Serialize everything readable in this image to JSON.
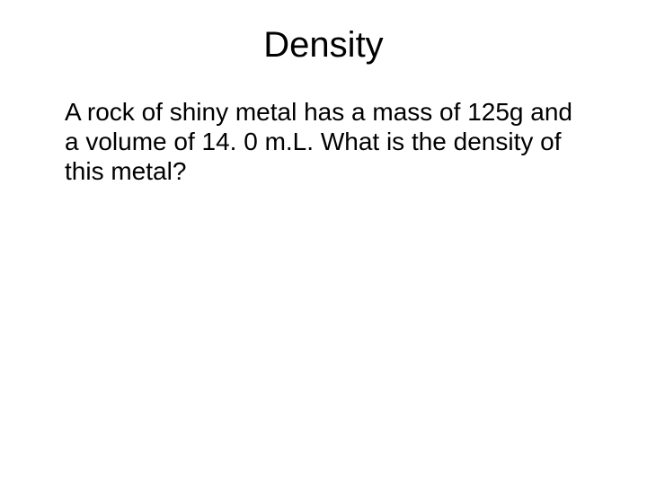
{
  "slide": {
    "title": "Density",
    "body": "A rock of shiny metal has a mass of 125g and a volume of 14. 0 m.L.  What is the density of this metal?",
    "background_color": "#ffffff",
    "text_color": "#000000",
    "title_fontsize": 40,
    "body_fontsize": 28,
    "font_family": "Arial"
  }
}
